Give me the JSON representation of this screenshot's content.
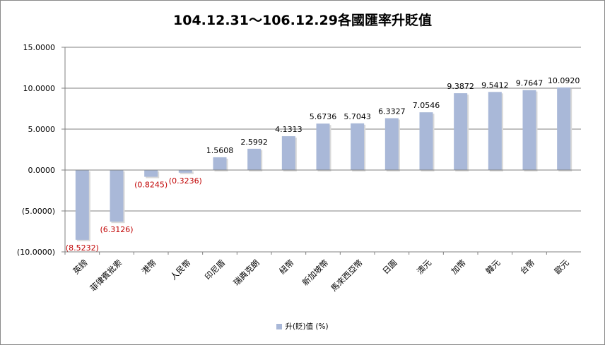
{
  "chart_data": {
    "type": "bar",
    "title": "104.12.31～106.12.29各國匯率升貶值",
    "categories": [
      "英鎊",
      "菲律賓批索",
      "港幣",
      "人民幣",
      "印尼盾",
      "瑞典克朗",
      "紐幣",
      "新加坡幣",
      "馬來西亞幣",
      "日圓",
      "澳元",
      "加幣",
      "韓元",
      "台幣",
      "歐元"
    ],
    "series": [
      {
        "name": "升(貶)值 (%)",
        "values": [
          -8.5232,
          -6.3126,
          -0.8245,
          -0.3236,
          1.5608,
          2.5992,
          4.1313,
          5.6736,
          5.7043,
          6.3327,
          7.0546,
          9.3872,
          9.5412,
          9.7647,
          10.092
        ],
        "labels": [
          "(8.5232)",
          "(6.3126)",
          "(0.8245)",
          "(0.3236)",
          "1.5608",
          "2.5992",
          "4.1313",
          "5.6736",
          "5.7043",
          "6.3327",
          "7.0546",
          "9.3872",
          "9.5412",
          "9.7647",
          "10.0920"
        ]
      }
    ],
    "ylim": [
      -10,
      15
    ],
    "yticks": [
      15,
      10,
      5,
      0,
      -5,
      -10
    ],
    "ytick_labels": [
      "15.0000",
      "10.0000",
      "5.0000",
      "0.0000",
      "(5.0000)",
      "(10.0000)"
    ],
    "grid": true,
    "legend": "bottom",
    "colors": {
      "bar": "#a9b8d8",
      "negative_label": "#c00000",
      "positive_label": "#000000",
      "grid": "#808080"
    }
  }
}
